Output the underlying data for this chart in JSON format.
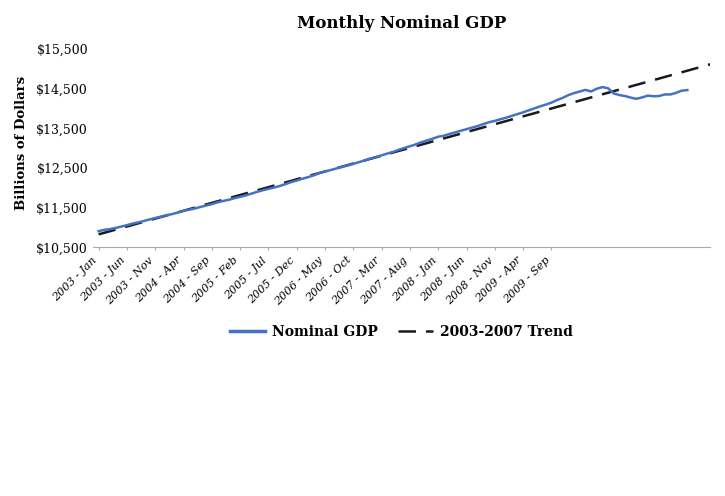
{
  "title": "Monthly Nominal GDP",
  "ylabel": "Billions of Dollars",
  "ylim": [
    10500,
    15750
  ],
  "yticks": [
    10500,
    11500,
    12500,
    13500,
    14500,
    15500
  ],
  "line_color": "#4472C4",
  "trend_color": "#1a1a1a",
  "background_color": "#ffffff",
  "legend_labels": [
    "Nominal GDP",
    "2003-2007 Trend"
  ],
  "gdp_data": [
    10908,
    10942,
    10960,
    10990,
    11024,
    11060,
    11100,
    11130,
    11165,
    11205,
    11240,
    11275,
    11310,
    11340,
    11380,
    11420,
    11450,
    11480,
    11520,
    11555,
    11590,
    11635,
    11670,
    11700,
    11740,
    11775,
    11810,
    11855,
    11900,
    11940,
    11975,
    12010,
    12048,
    12095,
    12145,
    12185,
    12230,
    12270,
    12315,
    12375,
    12410,
    12450,
    12490,
    12530,
    12565,
    12605,
    12650,
    12690,
    12740,
    12775,
    12820,
    12865,
    12905,
    12960,
    13005,
    13050,
    13095,
    13150,
    13195,
    13240,
    13290,
    13315,
    13360,
    13400,
    13440,
    13480,
    13520,
    13560,
    13610,
    13655,
    13690,
    13730,
    13770,
    13815,
    13860,
    13905,
    13955,
    14005,
    14055,
    14100,
    14150,
    14215,
    14270,
    14340,
    14390,
    14430,
    14470,
    14430,
    14500,
    14540,
    14510,
    14380,
    14340,
    14315,
    14275,
    14245,
    14280,
    14325,
    14310,
    14315,
    14355,
    14355,
    14395,
    14450,
    14465
  ],
  "tick_labels": [
    "2003 - Jan",
    "2003 - Jun",
    "2003 - Nov",
    "2004 - Apr",
    "2004 - Sep",
    "2005 - Feb",
    "2005 - Jul",
    "2005 - Dec",
    "2006 - May",
    "2006 - Oct",
    "2007 - Mar",
    "2007 - Aug",
    "2008 - Jan",
    "2008 - Jun",
    "2008 - Nov",
    "2009 - Apr",
    "2009 - Sep"
  ],
  "tick_positions_months": [
    0,
    5,
    10,
    15,
    20,
    25,
    30,
    35,
    40,
    45,
    50,
    55,
    60,
    65,
    70,
    75,
    80
  ],
  "trend_fit_n": 60,
  "trend_extend_to": 110
}
